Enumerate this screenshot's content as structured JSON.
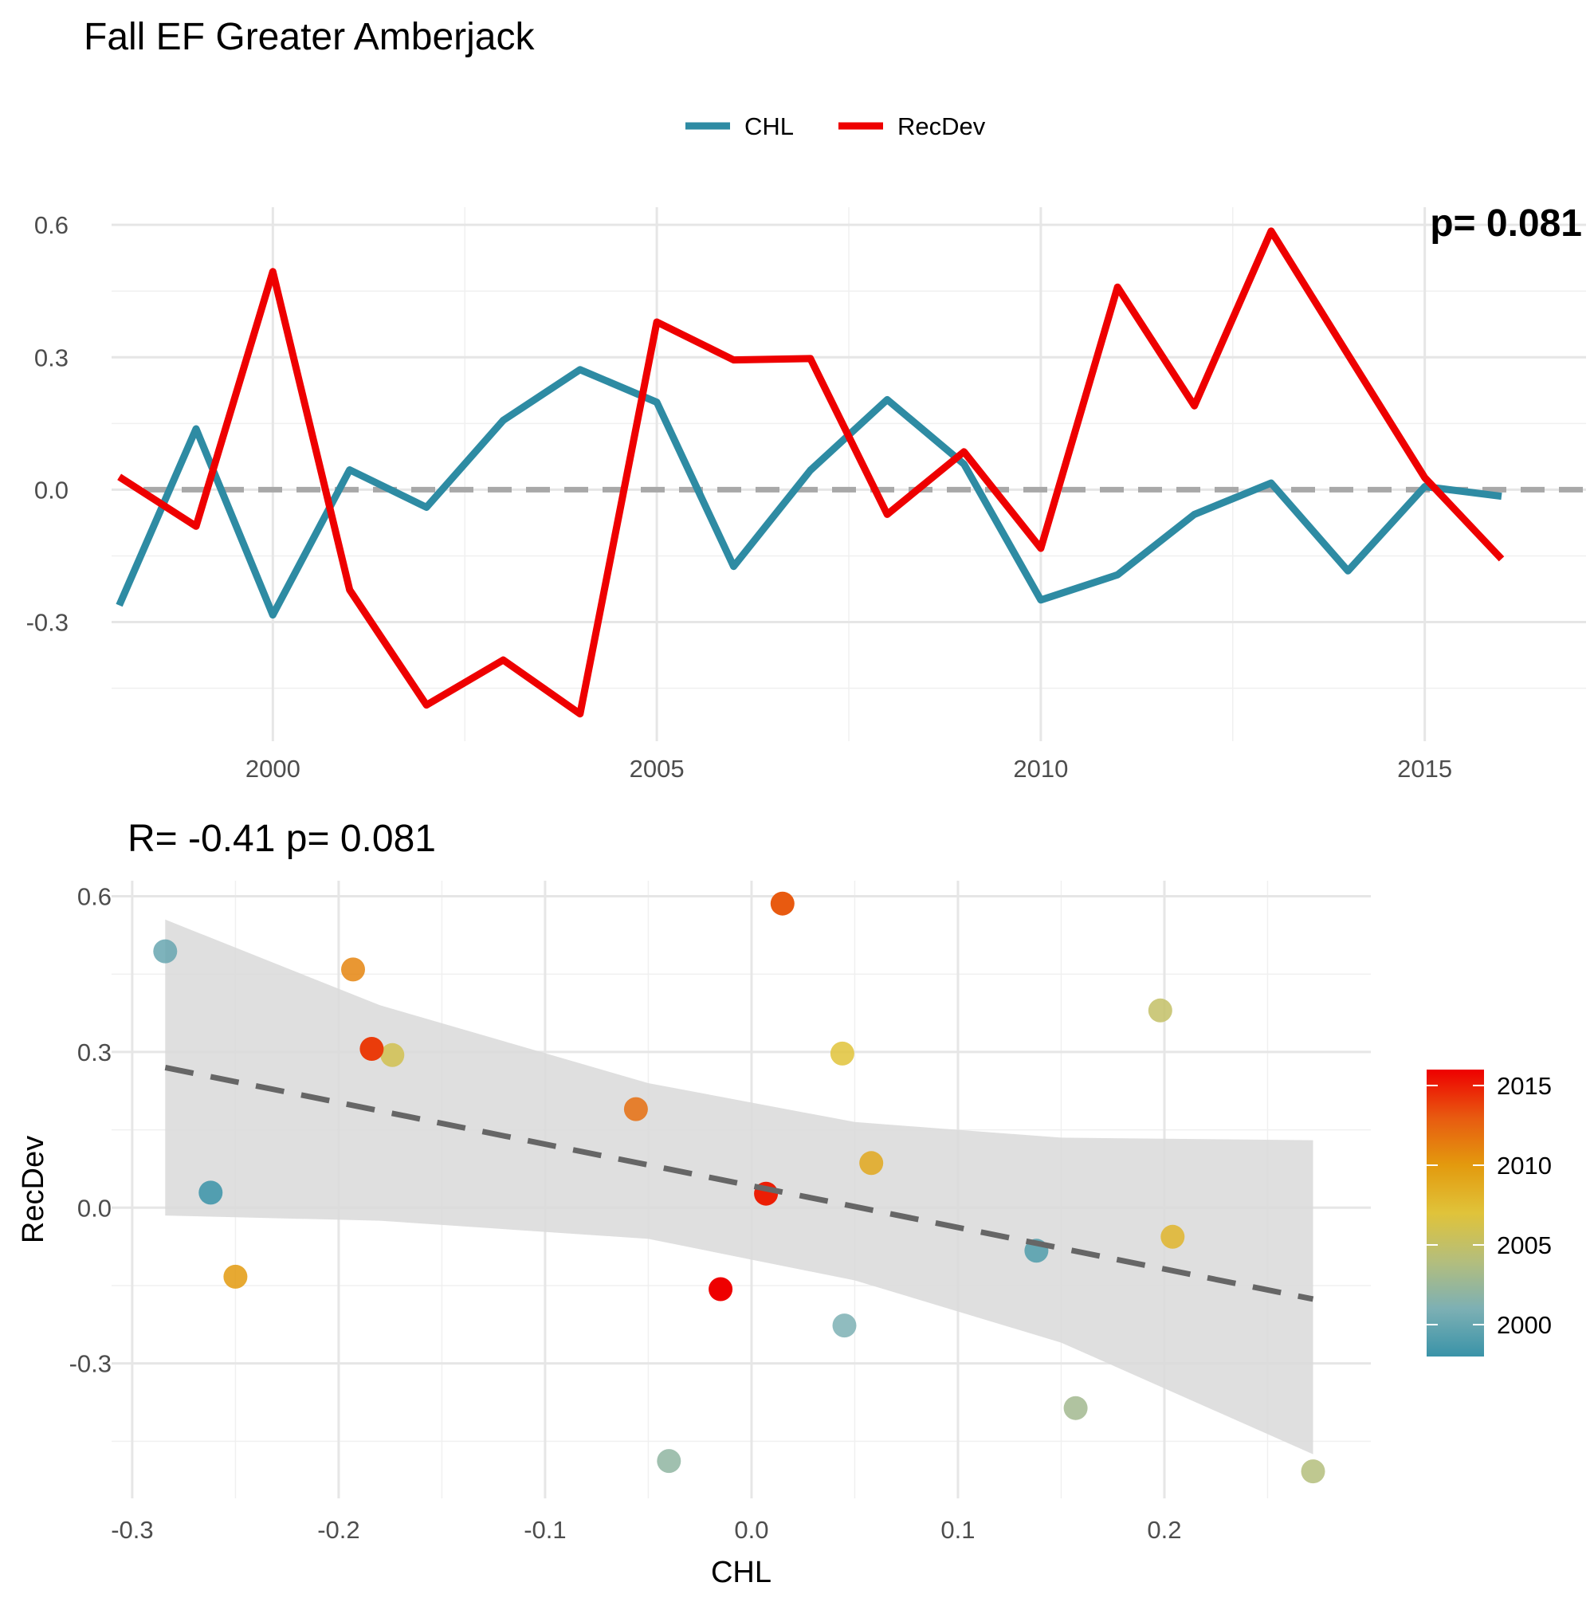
{
  "title": "Fall EF Greater Amberjack",
  "colors": {
    "chl": "#2E8BA3",
    "recdev": "#EE0000",
    "zero_line": "#A8A8A8",
    "ribbon": "#D9D9D9",
    "fit_line": "#666666",
    "grid": "#E6E6E6",
    "palette": [
      "#3A93A8",
      "#7DB0B4",
      "#B4BE7C",
      "#E0C33A",
      "#E39A0E",
      "#E85A10",
      "#EE0000"
    ]
  },
  "chart_data": [
    {
      "type": "line",
      "title": "",
      "corner_text": "p= 0.081",
      "xlabel": "",
      "ylabel": "",
      "legend": {
        "position": "top",
        "entries": [
          "CHL",
          "RecDev"
        ]
      },
      "grid": true,
      "xlim": [
        1997.9,
        2017.1
      ],
      "ylim": [
        -0.57,
        0.64
      ],
      "xticks": [
        2000,
        2005,
        2010,
        2015
      ],
      "yticks": [
        -0.3,
        0.0,
        0.3,
        0.6
      ],
      "x": [
        1998,
        1999,
        2000,
        2001,
        2002,
        2003,
        2004,
        2005,
        2006,
        2007,
        2008,
        2009,
        2010,
        2011,
        2012,
        2013,
        2014,
        2015,
        2016
      ],
      "series": [
        {
          "name": "CHL",
          "color": "#2E8BA3",
          "values": [
            -0.262,
            0.138,
            -0.284,
            0.045,
            -0.04,
            0.157,
            0.272,
            0.198,
            -0.174,
            0.044,
            0.204,
            0.058,
            -0.25,
            -0.193,
            -0.056,
            0.015,
            -0.184,
            0.007,
            -0.015
          ]
        },
        {
          "name": "RecDev",
          "color": "#EE0000",
          "values": [
            0.029,
            -0.083,
            0.494,
            -0.227,
            -0.488,
            -0.386,
            -0.508,
            0.38,
            0.294,
            0.297,
            -0.056,
            0.086,
            -0.133,
            0.459,
            0.19,
            0.586,
            0.306,
            0.027,
            -0.157
          ]
        }
      ],
      "reference_line": {
        "y": 0,
        "style": "dashed"
      }
    },
    {
      "type": "scatter",
      "title": "R= -0.41  p= 0.081",
      "xlabel": "CHL",
      "ylabel": "RecDev",
      "grid": true,
      "xlim": [
        -0.31,
        0.3
      ],
      "ylim": [
        -0.56,
        0.63
      ],
      "xticks": [
        -0.3,
        -0.2,
        -0.1,
        0.0,
        0.1,
        0.2
      ],
      "yticks": [
        -0.3,
        0.0,
        0.3,
        0.6
      ],
      "colorbar": {
        "label": "",
        "ticks": [
          2000,
          2005,
          2010,
          2015
        ],
        "range": [
          1998,
          2016
        ],
        "position": "right"
      },
      "points": [
        {
          "year": 1998,
          "x": -0.262,
          "y": 0.029
        },
        {
          "year": 1999,
          "x": 0.138,
          "y": -0.083
        },
        {
          "year": 2000,
          "x": -0.284,
          "y": 0.494
        },
        {
          "year": 2001,
          "x": 0.045,
          "y": -0.227
        },
        {
          "year": 2002,
          "x": -0.04,
          "y": -0.488
        },
        {
          "year": 2003,
          "x": 0.157,
          "y": -0.386
        },
        {
          "year": 2004,
          "x": 0.272,
          "y": -0.508
        },
        {
          "year": 2005,
          "x": 0.198,
          "y": 0.38
        },
        {
          "year": 2006,
          "x": -0.174,
          "y": 0.294
        },
        {
          "year": 2007,
          "x": 0.044,
          "y": 0.297
        },
        {
          "year": 2008,
          "x": 0.204,
          "y": -0.056
        },
        {
          "year": 2009,
          "x": 0.058,
          "y": 0.086
        },
        {
          "year": 2010,
          "x": -0.25,
          "y": -0.133
        },
        {
          "year": 2011,
          "x": -0.193,
          "y": 0.459
        },
        {
          "year": 2012,
          "x": -0.056,
          "y": 0.19
        },
        {
          "year": 2013,
          "x": 0.015,
          "y": 0.586
        },
        {
          "year": 2014,
          "x": -0.184,
          "y": 0.306
        },
        {
          "year": 2015,
          "x": 0.007,
          "y": 0.027
        },
        {
          "year": 2016,
          "x": -0.015,
          "y": -0.157
        }
      ],
      "fit": {
        "style": "dashed",
        "x": [
          -0.284,
          0.272
        ],
        "y": [
          0.27,
          -0.176
        ],
        "band": {
          "x": [
            -0.284,
            -0.18,
            -0.05,
            0.05,
            0.15,
            0.272
          ],
          "lower": [
            -0.015,
            -0.025,
            -0.06,
            -0.14,
            -0.26,
            -0.475
          ],
          "upper": [
            0.555,
            0.39,
            0.24,
            0.165,
            0.135,
            0.13
          ]
        }
      }
    }
  ]
}
